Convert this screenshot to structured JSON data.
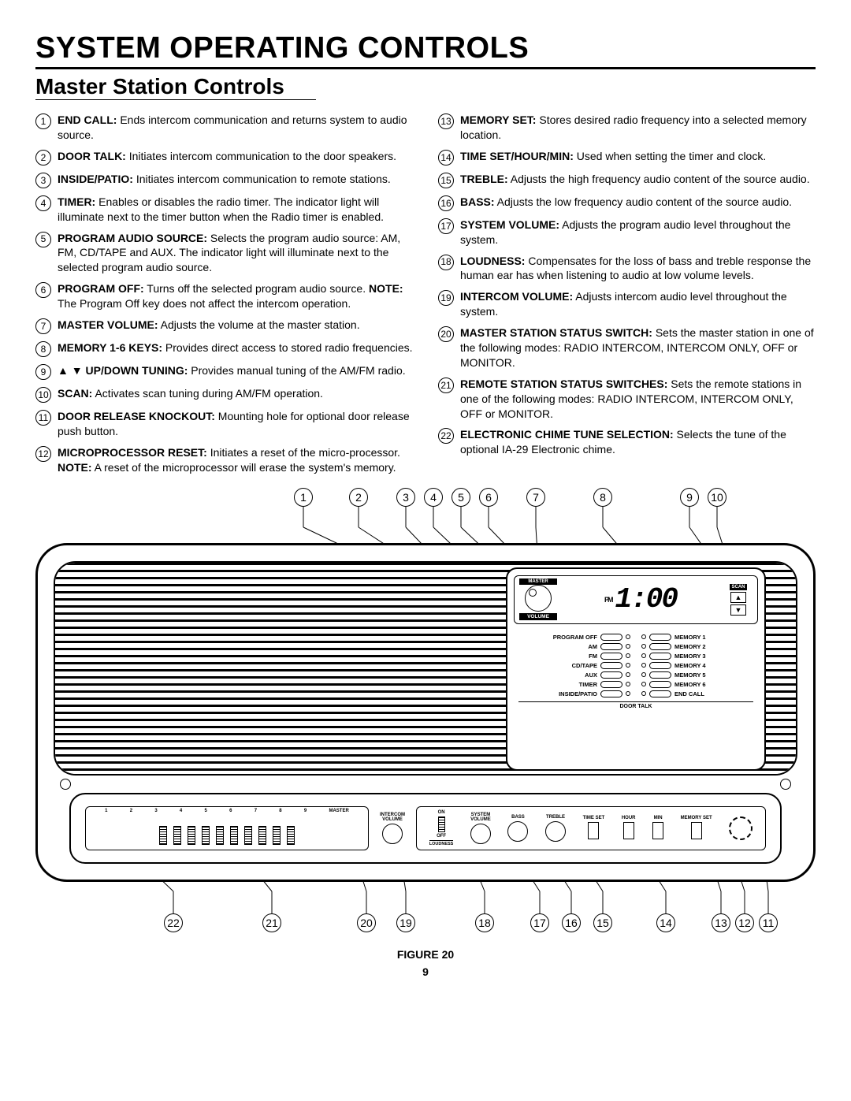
{
  "title": "SYSTEM OPERATING CONTROLS",
  "subtitle": "Master Station Controls",
  "page_number": "9",
  "figure_label": "FIGURE 20",
  "controls_left": [
    {
      "n": "1",
      "name": "END CALL:",
      "desc": "Ends intercom communication and returns system to audio source."
    },
    {
      "n": "2",
      "name": "DOOR TALK:",
      "desc": "Initiates intercom communication to the door speakers."
    },
    {
      "n": "3",
      "name": "INSIDE/PATIO:",
      "desc": "Initiates intercom communication to remote stations."
    },
    {
      "n": "4",
      "name": "TIMER:",
      "desc": "Enables or disables the radio timer. The indicator light will illuminate next to the timer button when the Radio timer is enabled."
    },
    {
      "n": "5",
      "name": "PROGRAM AUDIO SOURCE:",
      "desc": "Selects the program audio source: AM, FM, CD/TAPE and AUX. The indicator light will illuminate next to the selected program audio source."
    },
    {
      "n": "6",
      "name": "PROGRAM OFF:",
      "desc": "Turns off the selected program audio source.",
      "note": "The Program Off key does not affect the intercom operation."
    },
    {
      "n": "7",
      "name": "MASTER VOLUME:",
      "desc": "Adjusts the volume at the master station."
    },
    {
      "n": "8",
      "name": "MEMORY 1-6 KEYS:",
      "desc": "Provides direct access to stored radio frequencies."
    },
    {
      "n": "9",
      "name": "▲ ▼ UP/DOWN TUNING:",
      "desc": "Provides manual tuning of the AM/FM radio."
    },
    {
      "n": "10",
      "name": "SCAN:",
      "desc": "Activates scan tuning during AM/FM operation."
    },
    {
      "n": "11",
      "name": "DOOR RELEASE KNOCKOUT:",
      "desc": "Mounting hole for optional door release push button."
    },
    {
      "n": "12",
      "name": "MICROPROCESSOR RESET:",
      "desc": "Initiates a reset of the micro-processor.",
      "note": "A reset of the microprocessor will erase the system's memory."
    }
  ],
  "controls_right": [
    {
      "n": "13",
      "name": "MEMORY SET:",
      "desc": "Stores desired radio frequency into a selected memory location."
    },
    {
      "n": "14",
      "name": "TIME SET/HOUR/MIN:",
      "desc": "Used when setting the timer and clock."
    },
    {
      "n": "15",
      "name": "TREBLE:",
      "desc": "Adjusts the high frequency audio content of the source audio."
    },
    {
      "n": "16",
      "name": "BASS:",
      "desc": "Adjusts the low frequency audio content of the source audio."
    },
    {
      "n": "17",
      "name": "SYSTEM VOLUME:",
      "desc": "Adjusts the program audio level throughout the system."
    },
    {
      "n": "18",
      "name": "LOUDNESS:",
      "desc": "Compensates for the loss of bass and treble response the human ear has when listening to audio at low volume levels."
    },
    {
      "n": "19",
      "name": "INTERCOM VOLUME:",
      "desc": "Adjusts intercom audio level throughout the system."
    },
    {
      "n": "20",
      "name": "MASTER STATION STATUS SWITCH:",
      "desc": "Sets the master station in one of the following modes: RADIO INTERCOM, INTERCOM ONLY, OFF or MONITOR."
    },
    {
      "n": "21",
      "name": "REMOTE STATION STATUS SWITCHES:",
      "desc": "Sets the remote stations in one of the following modes: RADIO INTERCOM, INTERCOM ONLY, OFF or MONITOR."
    },
    {
      "n": "22",
      "name": "ELECTRONIC CHIME TUNE SELECTION:",
      "desc": "Selects the tune of the optional IA-29 Electronic chime."
    }
  ],
  "top_callouts": [
    "1",
    "2",
    "3",
    "4",
    "5",
    "6",
    "7",
    "8",
    "9",
    "10"
  ],
  "bottom_callouts": [
    "22",
    "21",
    "20",
    "19",
    "18",
    "17",
    "16",
    "15",
    "14",
    "13",
    "12",
    "11"
  ],
  "lcd": {
    "master_label": "MASTER",
    "volume_label": "VOLUME",
    "pm": "PM",
    "time": "1:00",
    "scan": "SCAN",
    "buttons_left": [
      "PROGRAM OFF",
      "AM",
      "FM",
      "CD/TAPE",
      "AUX",
      "TIMER",
      "INSIDE/PATIO"
    ],
    "buttons_right": [
      "MEMORY 1",
      "MEMORY 2",
      "MEMORY 3",
      "MEMORY 4",
      "MEMORY 5",
      "MEMORY 6",
      "END CALL"
    ],
    "door_talk": "DOOR TALK"
  },
  "bottom_switch_labels": [
    "1",
    "2",
    "3",
    "4",
    "5",
    "6",
    "7",
    "8",
    "9",
    "MASTER"
  ],
  "intercom_vol": "INTERCOM\nVOLUME",
  "on_label": "ON",
  "off_label": "OFF",
  "sys_vol": "SYSTEM\nVOLUME",
  "bass": "BASS",
  "treble": "TREBLE",
  "timeset": "TIME SET",
  "hour": "HOUR",
  "min": "MIN",
  "memset": "MEMORY SET",
  "loudness": "LOUDNESS",
  "colors": {
    "text": "#000000",
    "bg": "#ffffff",
    "rule": "#000000"
  }
}
